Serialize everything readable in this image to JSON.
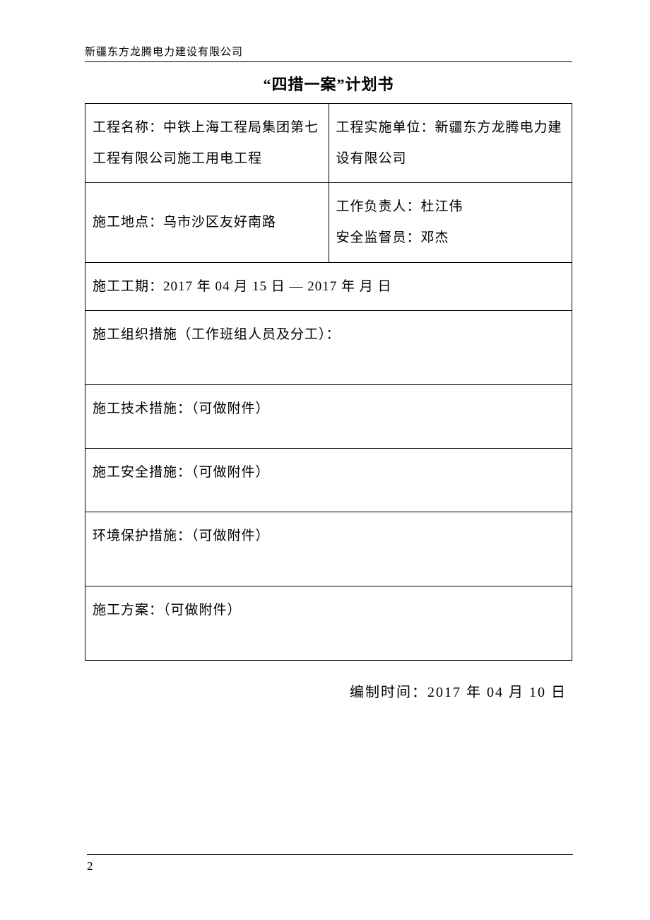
{
  "header": {
    "organization": "新疆东方龙腾电力建设有限公司"
  },
  "title": "“四措一案”计划书",
  "table": {
    "row1": {
      "left": "工程名称：中铁上海工程局集团第七工程有限公司施工用电工程",
      "right": "工程实施单位：新疆东方龙腾电力建设有限公司"
    },
    "row2": {
      "left": "施工地点：乌市沙区友好南路",
      "right_line1": "工作负责人：杜江伟",
      "right_line2": "安全监督员：邓杰"
    },
    "row3": "施工工期：2017 年 04 月 15 日 —  2017 年   月    日",
    "row4": "施工组织措施（工作班组人员及分工）：",
    "row5": "施工技术措施：（可做附件）",
    "row6": "施工安全措施：（可做附件）",
    "row7": "环境保护措施：（可做附件）",
    "row8": "施工方案：（可做附件）"
  },
  "footer": {
    "date": "编制时间：2017 年 04 月 10 日"
  },
  "page_number": "2"
}
